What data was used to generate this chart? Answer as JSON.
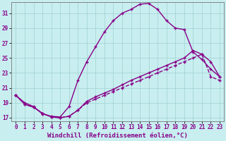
{
  "xlabel": "Windchill (Refroidissement éolien,°C)",
  "bg_color": "#c8eef0",
  "line_color": "#880088",
  "grid_color": "#a0d0d0",
  "xlim": [
    -0.5,
    23.5
  ],
  "ylim": [
    16.5,
    32.5
  ],
  "xticks": [
    0,
    1,
    2,
    3,
    4,
    5,
    6,
    7,
    8,
    9,
    10,
    11,
    12,
    13,
    14,
    15,
    16,
    17,
    18,
    19,
    20,
    21,
    22,
    23
  ],
  "yticks": [
    17,
    19,
    21,
    23,
    25,
    27,
    29,
    31
  ],
  "curve1_x": [
    0,
    1,
    2,
    3,
    4,
    5,
    6,
    7,
    8,
    9,
    10,
    11,
    12,
    13,
    14,
    15,
    16,
    17,
    18,
    19,
    20,
    21,
    22,
    23
  ],
  "curve1_y": [
    20.0,
    19.0,
    18.5,
    17.5,
    17.2,
    17.1,
    18.5,
    22.0,
    24.5,
    26.5,
    28.5,
    30.0,
    31.0,
    31.5,
    32.2,
    32.3,
    31.5,
    30.0,
    29.0,
    28.8,
    25.8,
    24.8,
    23.5,
    22.5
  ],
  "curve2_x": [
    0,
    1,
    2,
    3,
    4,
    5,
    6,
    7,
    8,
    9,
    10,
    11,
    12,
    13,
    14,
    15,
    16,
    17,
    18,
    19,
    20,
    21,
    22,
    23
  ],
  "curve2_y": [
    20.0,
    18.8,
    18.4,
    17.6,
    17.1,
    17.0,
    17.2,
    18.0,
    19.2,
    19.8,
    20.3,
    20.8,
    21.4,
    22.0,
    22.5,
    23.0,
    23.5,
    24.0,
    24.5,
    25.0,
    26.0,
    25.5,
    24.5,
    22.5
  ],
  "curve3_x": [
    0,
    1,
    2,
    3,
    4,
    5,
    6,
    7,
    8,
    9,
    10,
    11,
    12,
    13,
    14,
    15,
    16,
    17,
    18,
    19,
    20,
    21,
    22,
    23
  ],
  "curve3_y": [
    20.0,
    18.8,
    18.4,
    17.6,
    17.1,
    17.0,
    17.2,
    18.0,
    19.0,
    19.5,
    20.0,
    20.5,
    21.0,
    21.5,
    22.0,
    22.5,
    23.0,
    23.5,
    24.0,
    24.5,
    25.0,
    25.5,
    22.5,
    22.0
  ],
  "marker": "+",
  "markersize": 3,
  "linewidth": 1.0,
  "xlabel_fontsize": 6.5,
  "tick_fontsize": 5.5
}
